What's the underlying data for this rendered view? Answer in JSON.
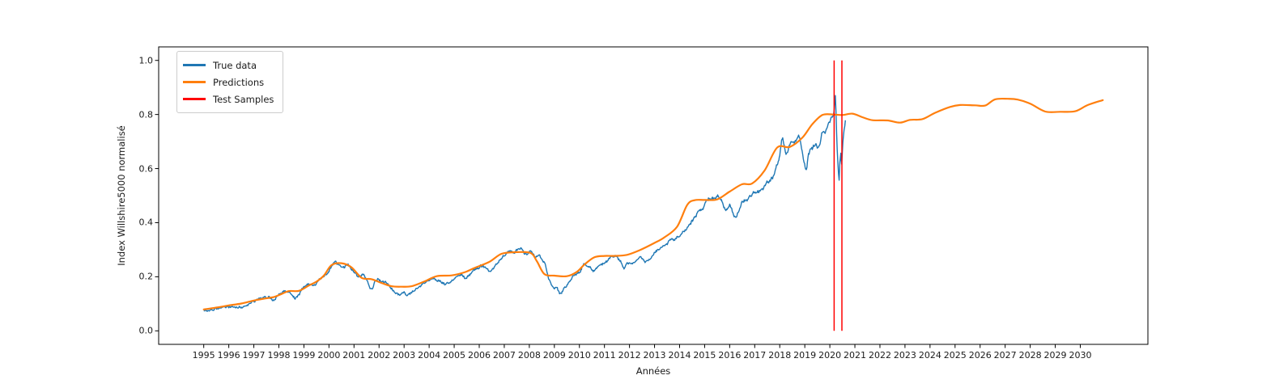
{
  "chart_data": {
    "type": "line",
    "title": "",
    "xlabel": "Années",
    "ylabel": "Index Willshire5000 normalisé",
    "xlim": [
      1993.2,
      2032.7
    ],
    "ylim": [
      -0.05,
      1.05
    ],
    "grid": false,
    "x_ticks": [
      1995,
      1996,
      1997,
      1998,
      1999,
      2000,
      2001,
      2002,
      2003,
      2004,
      2005,
      2006,
      2007,
      2008,
      2009,
      2010,
      2011,
      2012,
      2013,
      2014,
      2015,
      2016,
      2017,
      2018,
      2019,
      2020,
      2021,
      2022,
      2023,
      2024,
      2025,
      2026,
      2027,
      2028,
      2029,
      2030
    ],
    "x_tick_labels": [
      "1995",
      "1996",
      "1997",
      "1998",
      "1999",
      "2000",
      "2001",
      "2002",
      "2003",
      "2004",
      "2005",
      "2006",
      "2007",
      "2008",
      "2009",
      "2010",
      "2011",
      "2012",
      "2013",
      "2014",
      "2015",
      "2016",
      "2017",
      "2018",
      "2019",
      "2020",
      "2021",
      "2022",
      "2023",
      "2024",
      "2025",
      "2026",
      "2027",
      "2028",
      "2029",
      "2030"
    ],
    "y_ticks": [
      0.0,
      0.2,
      0.4,
      0.6,
      0.8,
      1.0
    ],
    "y_tick_labels": [
      "0.0",
      "0.2",
      "0.4",
      "0.6",
      "0.8",
      "1.0"
    ],
    "legend": {
      "position": "upper-left",
      "entries": [
        {
          "label": "True data",
          "color": "#1f77b4"
        },
        {
          "label": "Predictions",
          "color": "#ff7f0e"
        },
        {
          "label": "Test Samples",
          "color": "#ff0000"
        }
      ]
    },
    "series": [
      {
        "name": "True data",
        "type": "line",
        "color": "#1f77b4",
        "noisy": true,
        "points": [
          [
            1995.0,
            0.074
          ],
          [
            1995.3,
            0.078
          ],
          [
            1995.6,
            0.083
          ],
          [
            1995.8,
            0.086
          ],
          [
            1996.0,
            0.089
          ],
          [
            1996.3,
            0.094
          ],
          [
            1996.6,
            0.09
          ],
          [
            1996.8,
            0.098
          ],
          [
            1997.0,
            0.107
          ],
          [
            1997.3,
            0.117
          ],
          [
            1997.6,
            0.122
          ],
          [
            1997.8,
            0.112
          ],
          [
            1998.0,
            0.132
          ],
          [
            1998.3,
            0.152
          ],
          [
            1998.55,
            0.128
          ],
          [
            1998.7,
            0.122
          ],
          [
            1999.0,
            0.162
          ],
          [
            1999.4,
            0.172
          ],
          [
            1999.7,
            0.195
          ],
          [
            2000.0,
            0.225
          ],
          [
            2000.27,
            0.251
          ],
          [
            2000.5,
            0.232
          ],
          [
            2000.7,
            0.242
          ],
          [
            2001.0,
            0.225
          ],
          [
            2001.2,
            0.2
          ],
          [
            2001.4,
            0.21
          ],
          [
            2001.7,
            0.157
          ],
          [
            2001.85,
            0.192
          ],
          [
            2002.0,
            0.19
          ],
          [
            2002.3,
            0.175
          ],
          [
            2002.55,
            0.15
          ],
          [
            2002.78,
            0.132
          ],
          [
            2003.0,
            0.142
          ],
          [
            2003.2,
            0.137
          ],
          [
            2003.7,
            0.172
          ],
          [
            2004.2,
            0.192
          ],
          [
            2004.7,
            0.177
          ],
          [
            2005.0,
            0.19
          ],
          [
            2005.3,
            0.207
          ],
          [
            2005.5,
            0.198
          ],
          [
            2006.05,
            0.237
          ],
          [
            2006.4,
            0.222
          ],
          [
            2006.7,
            0.25
          ],
          [
            2007.0,
            0.28
          ],
          [
            2007.3,
            0.29
          ],
          [
            2007.66,
            0.306
          ],
          [
            2007.9,
            0.288
          ],
          [
            2008.05,
            0.294
          ],
          [
            2008.2,
            0.27
          ],
          [
            2008.4,
            0.272
          ],
          [
            2008.6,
            0.25
          ],
          [
            2008.75,
            0.2
          ],
          [
            2008.9,
            0.165
          ],
          [
            2009.0,
            0.155
          ],
          [
            2009.1,
            0.162
          ],
          [
            2009.23,
            0.137
          ],
          [
            2009.4,
            0.162
          ],
          [
            2009.6,
            0.186
          ],
          [
            2009.82,
            0.212
          ],
          [
            2010.0,
            0.216
          ],
          [
            2010.2,
            0.246
          ],
          [
            2010.5,
            0.222
          ],
          [
            2010.75,
            0.236
          ],
          [
            2011.0,
            0.25
          ],
          [
            2011.25,
            0.27
          ],
          [
            2011.45,
            0.281
          ],
          [
            2011.6,
            0.26
          ],
          [
            2011.78,
            0.237
          ],
          [
            2011.9,
            0.25
          ],
          [
            2012.1,
            0.248
          ],
          [
            2012.4,
            0.271
          ],
          [
            2012.6,
            0.258
          ],
          [
            2012.8,
            0.268
          ],
          [
            2013.06,
            0.296
          ],
          [
            2013.3,
            0.31
          ],
          [
            2013.6,
            0.332
          ],
          [
            2013.85,
            0.345
          ],
          [
            2014.1,
            0.36
          ],
          [
            2014.35,
            0.386
          ],
          [
            2014.5,
            0.405
          ],
          [
            2014.78,
            0.445
          ],
          [
            2015.0,
            0.465
          ],
          [
            2015.2,
            0.49
          ],
          [
            2015.45,
            0.5
          ],
          [
            2015.65,
            0.492
          ],
          [
            2015.85,
            0.45
          ],
          [
            2016.0,
            0.468
          ],
          [
            2016.2,
            0.425
          ],
          [
            2016.45,
            0.467
          ],
          [
            2016.65,
            0.48
          ],
          [
            2016.9,
            0.505
          ],
          [
            2017.1,
            0.512
          ],
          [
            2017.35,
            0.532
          ],
          [
            2017.6,
            0.552
          ],
          [
            2017.8,
            0.578
          ],
          [
            2018.0,
            0.645
          ],
          [
            2018.1,
            0.714
          ],
          [
            2018.25,
            0.654
          ],
          [
            2018.45,
            0.69
          ],
          [
            2018.6,
            0.7
          ],
          [
            2018.8,
            0.705
          ],
          [
            2019.03,
            0.6
          ],
          [
            2019.15,
            0.655
          ],
          [
            2019.3,
            0.672
          ],
          [
            2019.45,
            0.7
          ],
          [
            2019.55,
            0.685
          ],
          [
            2019.7,
            0.73
          ],
          [
            2019.85,
            0.745
          ],
          [
            2019.95,
            0.77
          ],
          [
            2020.05,
            0.79
          ],
          [
            2020.15,
            0.8
          ],
          [
            2020.22,
            0.862
          ],
          [
            2020.27,
            0.72
          ],
          [
            2020.32,
            0.62
          ],
          [
            2020.37,
            0.557
          ],
          [
            2020.4,
            0.63
          ],
          [
            2020.44,
            0.66
          ],
          [
            2020.47,
            0.62
          ],
          [
            2020.52,
            0.7
          ],
          [
            2020.57,
            0.755
          ],
          [
            2020.62,
            0.78
          ]
        ]
      },
      {
        "name": "Predictions",
        "type": "line",
        "color": "#ff7f0e",
        "noisy": false,
        "points": [
          [
            1995.0,
            0.079
          ],
          [
            1995.5,
            0.086
          ],
          [
            1996.0,
            0.094
          ],
          [
            1996.5,
            0.101
          ],
          [
            1997.0,
            0.112
          ],
          [
            1997.4,
            0.119
          ],
          [
            1997.8,
            0.125
          ],
          [
            1998.1,
            0.136
          ],
          [
            1998.4,
            0.147
          ],
          [
            1998.8,
            0.148
          ],
          [
            1999.2,
            0.168
          ],
          [
            1999.5,
            0.182
          ],
          [
            1999.8,
            0.205
          ],
          [
            2000.1,
            0.243
          ],
          [
            2000.5,
            0.25
          ],
          [
            2000.9,
            0.235
          ],
          [
            2001.3,
            0.196
          ],
          [
            2001.7,
            0.191
          ],
          [
            2002.1,
            0.177
          ],
          [
            2002.5,
            0.165
          ],
          [
            2002.9,
            0.163
          ],
          [
            2003.3,
            0.165
          ],
          [
            2003.8,
            0.182
          ],
          [
            2004.3,
            0.202
          ],
          [
            2004.9,
            0.205
          ],
          [
            2005.4,
            0.216
          ],
          [
            2005.8,
            0.232
          ],
          [
            2006.4,
            0.255
          ],
          [
            2006.9,
            0.285
          ],
          [
            2007.5,
            0.291
          ],
          [
            2008.05,
            0.288
          ],
          [
            2008.3,
            0.258
          ],
          [
            2008.6,
            0.21
          ],
          [
            2009.0,
            0.204
          ],
          [
            2009.5,
            0.202
          ],
          [
            2009.9,
            0.218
          ],
          [
            2010.2,
            0.245
          ],
          [
            2010.6,
            0.272
          ],
          [
            2011.0,
            0.277
          ],
          [
            2011.4,
            0.277
          ],
          [
            2011.9,
            0.281
          ],
          [
            2012.4,
            0.298
          ],
          [
            2013.0,
            0.325
          ],
          [
            2013.4,
            0.346
          ],
          [
            2013.9,
            0.385
          ],
          [
            2014.3,
            0.465
          ],
          [
            2014.6,
            0.483
          ],
          [
            2015.0,
            0.484
          ],
          [
            2015.5,
            0.486
          ],
          [
            2016.0,
            0.515
          ],
          [
            2016.5,
            0.542
          ],
          [
            2016.9,
            0.545
          ],
          [
            2017.4,
            0.594
          ],
          [
            2017.9,
            0.678
          ],
          [
            2018.4,
            0.68
          ],
          [
            2018.9,
            0.714
          ],
          [
            2019.3,
            0.764
          ],
          [
            2019.7,
            0.798
          ],
          [
            2020.1,
            0.8
          ],
          [
            2020.5,
            0.798
          ],
          [
            2020.9,
            0.803
          ],
          [
            2021.3,
            0.79
          ],
          [
            2021.7,
            0.779
          ],
          [
            2022.3,
            0.778
          ],
          [
            2022.8,
            0.77
          ],
          [
            2023.2,
            0.78
          ],
          [
            2023.7,
            0.783
          ],
          [
            2024.2,
            0.806
          ],
          [
            2024.8,
            0.828
          ],
          [
            2025.2,
            0.835
          ],
          [
            2025.8,
            0.834
          ],
          [
            2026.2,
            0.833
          ],
          [
            2026.6,
            0.856
          ],
          [
            2027.1,
            0.858
          ],
          [
            2027.5,
            0.855
          ],
          [
            2028.0,
            0.84
          ],
          [
            2028.6,
            0.811
          ],
          [
            2029.2,
            0.81
          ],
          [
            2029.8,
            0.812
          ],
          [
            2030.3,
            0.835
          ],
          [
            2030.9,
            0.853
          ]
        ]
      },
      {
        "name": "Test Samples",
        "type": "vlines",
        "color": "#ff0000",
        "x": [
          2020.17,
          2020.48
        ],
        "ymin": 0.0,
        "ymax": 1.0
      }
    ]
  }
}
